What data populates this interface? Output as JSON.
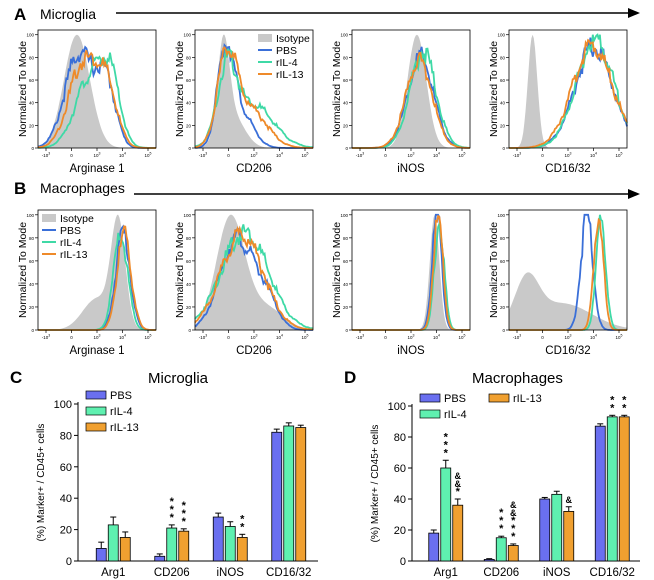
{
  "colors": {
    "isotype": "#c9c9c9",
    "pbs": "#3a6fd8",
    "ril4": "#3fd9a6",
    "ril13": "#ee8a2a",
    "pbs_bar": "#6a6ff0",
    "ril4_bar": "#5ff0b0",
    "ril13_bar": "#f0a030"
  },
  "panels": {
    "A": {
      "letter": "A",
      "title": "Microglia"
    },
    "B": {
      "letter": "B",
      "title": "Macrophages"
    },
    "C": {
      "letter": "C",
      "title": "Microglia"
    },
    "D": {
      "letter": "D",
      "title": "Macrophages"
    }
  },
  "histogram_ylabel": "Normalized To Mode",
  "histogram_yticks": [
    "100",
    "80",
    "60",
    "40",
    "20",
    "0"
  ],
  "histogram_xticks": [
    "-10",
    "0",
    "10",
    "10",
    "10"
  ],
  "histogram_xtick_exps": [
    "3",
    "",
    "3",
    "4",
    "5"
  ],
  "legend": {
    "isotype": "Isotype",
    "pbs": "PBS",
    "ril4": "rIL-4",
    "ril13": "rIL-13"
  },
  "chart_data": [
    {
      "type": "area",
      "panel": "A",
      "x_scale": "biexponential",
      "y_range": [
        0,
        100
      ],
      "markers": [
        "Arginase 1",
        "CD206",
        "iNOS",
        "CD16/32"
      ],
      "legend_location": "CD206 plot, top-right",
      "series": [
        "Isotype",
        "PBS",
        "rIL-4",
        "rIL-13"
      ],
      "peaks": [
        {
          "marker": "Arginase 1",
          "Isotype": 100,
          "PBS": 85,
          "rIL-4": 80,
          "rIL-13": 80
        },
        {
          "marker": "CD206",
          "Isotype": 100,
          "PBS": 95,
          "rIL-4": 80,
          "rIL-13": 90
        },
        {
          "marker": "iNOS",
          "Isotype": 100,
          "PBS": 80,
          "rIL-4": 85,
          "rIL-13": 78
        },
        {
          "marker": "CD16/32",
          "Isotype": 100,
          "PBS": 90,
          "rIL-4": 95,
          "rIL-13": 90
        }
      ]
    },
    {
      "type": "area",
      "panel": "B",
      "x_scale": "biexponential",
      "y_range": [
        0,
        100
      ],
      "markers": [
        "Arginase 1",
        "CD206",
        "iNOS",
        "CD16/32"
      ],
      "legend_location": "Arginase 1 plot, top-left",
      "series": [
        "Isotype",
        "PBS",
        "rIL-4",
        "rIL-13"
      ],
      "peaks": [
        {
          "marker": "Arginase 1",
          "Isotype": 100,
          "PBS": 85,
          "rIL-4": 82,
          "rIL-13": 82
        },
        {
          "marker": "CD206",
          "Isotype": 100,
          "PBS": 80,
          "rIL-4": 85,
          "rIL-13": 83
        },
        {
          "marker": "iNOS",
          "Isotype": 100,
          "PBS": 100,
          "rIL-4": 95,
          "rIL-13": 97
        },
        {
          "marker": "CD16/32",
          "Isotype": 50,
          "PBS": 100,
          "rIL-4": 98,
          "rIL-13": 100
        }
      ]
    },
    {
      "type": "bar",
      "panel": "C",
      "title": "Microglia",
      "ylabel": "(%) Marker+ / CD45+ cells",
      "ylim": [
        0,
        100
      ],
      "yticks": [
        "0",
        "20",
        "40",
        "60",
        "80",
        "100"
      ],
      "categories": [
        "Arg1",
        "CD206",
        "iNOS",
        "CD16/32"
      ],
      "series": [
        {
          "name": "PBS",
          "values": [
            8,
            3,
            28,
            82
          ],
          "errors": [
            4,
            1.5,
            2.5,
            2
          ],
          "marks": [
            "",
            "",
            "",
            ""
          ]
        },
        {
          "name": "rIL-4",
          "values": [
            23,
            21,
            22,
            86
          ],
          "errors": [
            5,
            2,
            3,
            2
          ],
          "marks": [
            "",
            "***",
            "",
            ""
          ]
        },
        {
          "name": "rIL-13",
          "values": [
            15,
            19,
            15,
            85
          ],
          "errors": [
            3.5,
            1.5,
            2,
            1.5
          ],
          "marks": [
            "",
            "***",
            "**",
            ""
          ]
        }
      ]
    },
    {
      "type": "bar",
      "panel": "D",
      "title": "Macrophages",
      "ylabel": "(%) Marker+ / CD45+ cells",
      "ylim": [
        0,
        100
      ],
      "yticks": [
        "0",
        "20",
        "40",
        "60",
        "80",
        "100"
      ],
      "categories": [
        "Arg1",
        "CD206",
        "iNOS",
        "CD16/32"
      ],
      "series": [
        {
          "name": "PBS",
          "values": [
            18,
            1,
            40,
            87
          ],
          "errors": [
            2,
            0.5,
            1,
            1.5
          ],
          "marks": [
            "",
            "",
            "",
            ""
          ]
        },
        {
          "name": "rIL-4",
          "values": [
            60,
            15,
            43,
            93
          ],
          "errors": [
            5,
            1,
            2,
            1
          ],
          "marks": [
            "***",
            "***",
            "",
            "**"
          ]
        },
        {
          "name": "rIL-13",
          "values": [
            36,
            10,
            32,
            93
          ],
          "errors": [
            4,
            1,
            3,
            1
          ],
          "marks": [
            "&&*",
            "&&***",
            "&",
            "**"
          ]
        }
      ]
    }
  ]
}
